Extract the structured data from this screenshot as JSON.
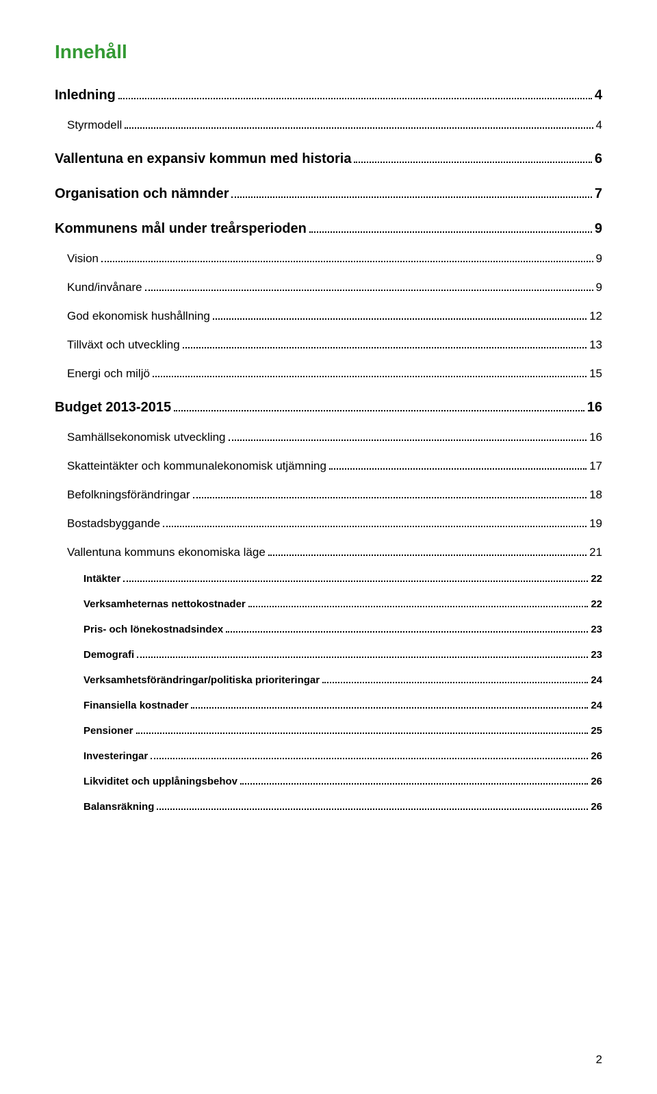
{
  "title": "Innehåll",
  "page_footer": "2",
  "entries": [
    {
      "level": 1,
      "label": "Inledning",
      "page": "4"
    },
    {
      "level": 2,
      "label": "Styrmodell",
      "page": "4"
    },
    {
      "level": 1,
      "label": "Vallentuna en expansiv kommun med historia",
      "page": "6"
    },
    {
      "level": 1,
      "label": "Organisation och nämnder",
      "page": "7"
    },
    {
      "level": 1,
      "label": "Kommunens mål under treårsperioden",
      "page": "9"
    },
    {
      "level": 2,
      "label": "Vision",
      "page": "9"
    },
    {
      "level": 2,
      "label": "Kund/invånare",
      "page": "9"
    },
    {
      "level": 2,
      "label": "God ekonomisk hushållning",
      "page": "12"
    },
    {
      "level": 2,
      "label": "Tillväxt och utveckling",
      "page": "13"
    },
    {
      "level": 2,
      "label": "Energi och miljö",
      "page": "15"
    },
    {
      "level": 1,
      "label": "Budget 2013-2015",
      "page": "16"
    },
    {
      "level": 2,
      "label": "Samhällsekonomisk utveckling",
      "page": "16"
    },
    {
      "level": 2,
      "label": "Skatteintäkter och kommunalekonomisk utjämning",
      "page": "17"
    },
    {
      "level": 2,
      "label": "Befolkningsförändringar",
      "page": "18"
    },
    {
      "level": 2,
      "label": "Bostadsbyggande",
      "page": "19"
    },
    {
      "level": 2,
      "label": "Vallentuna kommuns ekonomiska läge",
      "page": "21"
    },
    {
      "level": 3,
      "label": "Intäkter",
      "page": "22"
    },
    {
      "level": 3,
      "label": "Verksamheternas nettokostnader",
      "page": "22"
    },
    {
      "level": 3,
      "label": "Pris- och lönekostnadsindex",
      "page": "23"
    },
    {
      "level": 3,
      "label": "Demografi",
      "page": "23"
    },
    {
      "level": 3,
      "label": "Verksamhetsförändringar/politiska prioriteringar",
      "page": "24"
    },
    {
      "level": 3,
      "label": "Finansiella kostnader",
      "page": "24"
    },
    {
      "level": 3,
      "label": "Pensioner",
      "page": "25"
    },
    {
      "level": 3,
      "label": "Investeringar",
      "page": "26"
    },
    {
      "level": 3,
      "label": "Likviditet och upplåningsbehov",
      "page": "26"
    },
    {
      "level": 3,
      "label": "Balansräkning",
      "page": "26"
    }
  ]
}
